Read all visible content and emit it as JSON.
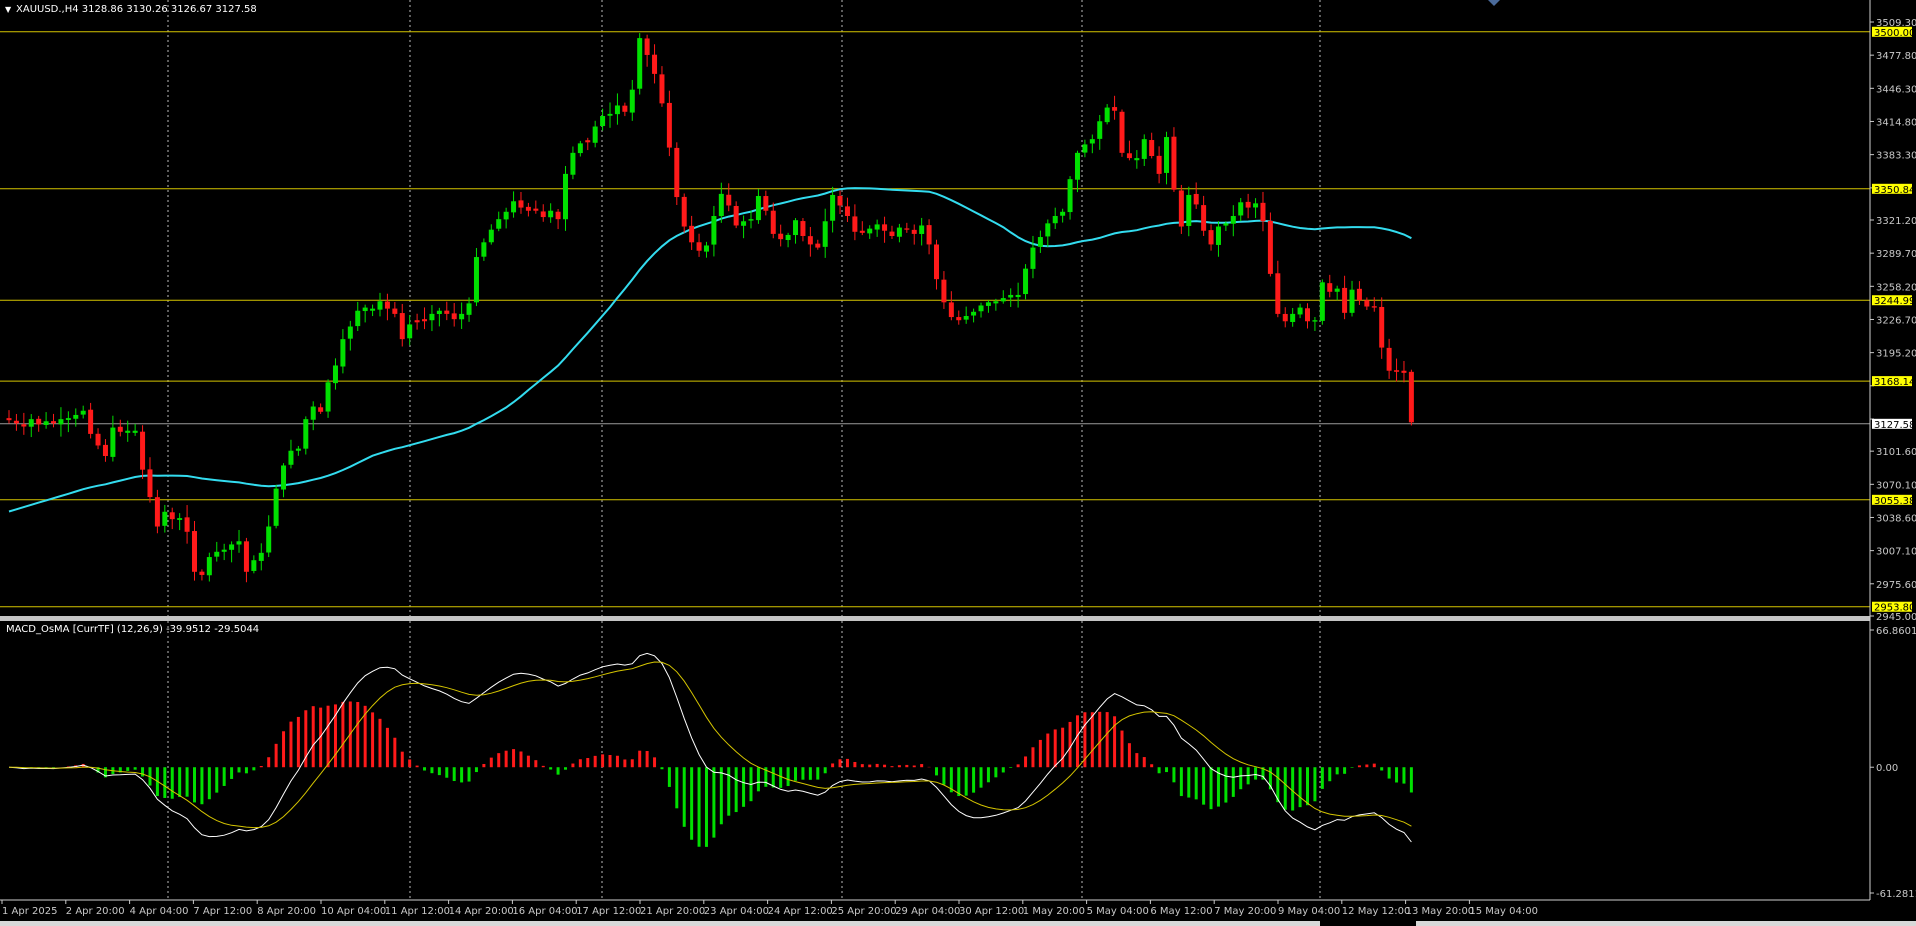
{
  "colors": {
    "background": "#000000",
    "bull_candle": "#00e000",
    "bear_candle": "#ff1a1a",
    "ma_line": "#33dcef",
    "level_line": "#d4c400",
    "level_tag_bg": "#ffff00",
    "current_price_tag_bg": "#ffffff",
    "macd_line": "#ffffff",
    "signal_line": "#d4c400",
    "grid": "#cfcfcf"
  },
  "chart_data": [
    {
      "type": "candlestick",
      "title": "XAUUSD.,H4  3128.86 3130.26 3126.67 3127.58",
      "title_icon": "triangle-down-icon",
      "symbol": "XAUUSD.",
      "timeframe": "H4",
      "current_bar_ohlc": {
        "open": 3128.86,
        "high": 3130.26,
        "low": 3126.67,
        "close": 3127.58
      },
      "current_price": 3127.58,
      "current_price_tag": "3127.58",
      "ylim": [
        2945.0,
        3518.0
      ],
      "y_ticks": [
        3509.3,
        3477.8,
        3446.3,
        3414.8,
        3383.3,
        3351.7,
        3321.2,
        3289.7,
        3258.2,
        3226.7,
        3195.2,
        3163.7,
        3132.1,
        3101.6,
        3070.1,
        3038.6,
        3007.1,
        2975.6,
        2945.0
      ],
      "y_tick_labels": [
        "3509.30",
        "3477.80",
        "3446.30",
        "3414.80",
        "3383.30",
        "",
        "3321.20",
        "3289.70",
        "3258.20",
        "3226.70",
        "3195.20",
        "",
        "",
        "3101.60",
        "3070.10",
        "3038.60",
        "3007.10",
        "2975.60",
        "2945.00"
      ],
      "horizontal_levels": [
        3500.0,
        3350.84,
        3244.99,
        3168.14,
        3055.38,
        2953.8
      ],
      "horizontal_level_labels": [
        "3500.00",
        "3350.84",
        "3244.99",
        "3168.14",
        "3055.38",
        "2953.80"
      ],
      "x_ticks": [
        "1 Apr 2025",
        "2 Apr 20:00",
        "4 Apr 04:00",
        "7 Apr 12:00",
        "8 Apr 20:00",
        "10 Apr 04:00",
        "11 Apr 12:00",
        "14 Apr 20:00",
        "16 Apr 04:00",
        "17 Apr 12:00",
        "21 Apr 20:00",
        "23 Apr 04:00",
        "24 Apr 12:00",
        "25 Apr 20:00",
        "29 Apr 04:00",
        "30 Apr 12:00",
        "1 May 20:00",
        "5 May 04:00",
        "6 May 12:00",
        "7 May 20:00",
        "9 May 04:00",
        "12 May 12:00",
        "13 May 20:00",
        "15 May 04:00"
      ],
      "period_separators": [
        "4 Apr 04:00",
        "11 Apr 12:00",
        "17 Apr 12:00",
        "25 Apr 20:00",
        "5 May 04:00",
        "9 May 04:00"
      ],
      "ohlc_close": [
        3131,
        3128,
        3125,
        3132,
        3127,
        3130,
        3128,
        3132,
        3133,
        3136,
        3140,
        3118,
        3107,
        3097,
        3124,
        3120,
        3121,
        3121,
        3084,
        3058,
        3030,
        3044,
        3037,
        3038,
        3025,
        2987,
        2984,
        3001,
        3006,
        3008,
        3013,
        3016,
        2987,
        2998,
        3005,
        3030,
        3066,
        3088,
        3102,
        3104,
        3132,
        3144,
        3139,
        3167,
        3183,
        3208,
        3220,
        3235,
        3238,
        3237,
        3244,
        3237,
        3232,
        3208,
        3222,
        3224,
        3225,
        3232,
        3235,
        3232,
        3227,
        3232,
        3242,
        3286,
        3300,
        3312,
        3322,
        3329,
        3339,
        3333,
        3330,
        3330,
        3324,
        3330,
        3322,
        3365,
        3385,
        3394,
        3395,
        3410,
        3420,
        3422,
        3430,
        3424,
        3445,
        3494,
        3478,
        3460,
        3432,
        3390,
        3343,
        3315,
        3300,
        3292,
        3297,
        3325,
        3346,
        3335,
        3316,
        3320,
        3322,
        3344,
        3330,
        3308,
        3303,
        3307,
        3321,
        3306,
        3298,
        3295,
        3320,
        3345,
        3335,
        3325,
        3310,
        3309,
        3313,
        3317,
        3311,
        3306,
        3314,
        3312,
        3308,
        3316,
        3298,
        3265,
        3243,
        3229,
        3226,
        3230,
        3234,
        3240,
        3243,
        3244,
        3247,
        3250,
        3250,
        3275,
        3295,
        3305,
        3318,
        3325,
        3329,
        3360,
        3385,
        3393,
        3398,
        3415,
        3428,
        3425,
        3385,
        3380,
        3380,
        3398,
        3382,
        3365,
        3400,
        3350,
        3315,
        3345,
        3336,
        3311,
        3298,
        3315,
        3318,
        3325,
        3338,
        3333,
        3337,
        3320,
        3270,
        3232,
        3225,
        3232,
        3238,
        3225,
        3226,
        3262,
        3253,
        3256,
        3233,
        3255,
        3245,
        3239,
        3238,
        3200,
        3178,
        3177,
        3176,
        3129
      ],
      "ma_period_note": "",
      "subwindow": {
        "type": "histogram+line",
        "title": "MACD_OsMA [CurrTF] (12,26,9) -39.9512 -29.5044",
        "macd": -39.9512,
        "signal": -29.5044,
        "ylim": [
          -61.2811,
          66.8601
        ],
        "y_tick_labels": [
          "66.8601",
          "0.00",
          "-61.2811"
        ],
        "y_ticks": [
          66.8601,
          0.0,
          -61.2811
        ]
      }
    }
  ]
}
